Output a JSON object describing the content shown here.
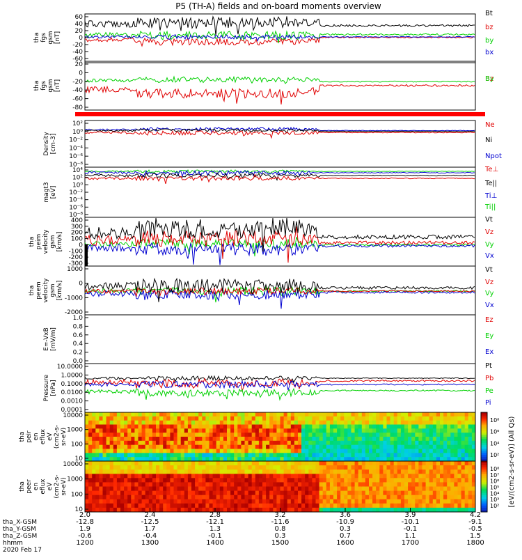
{
  "title": "P5 (TH-A) fields and on-board moments overview",
  "colors": {
    "black": "#000000",
    "red": "#e00000",
    "green": "#00d000",
    "blue": "#0000d0"
  },
  "chart_data": {
    "type": "line",
    "time_axis": {
      "hhmm": [
        "1200",
        "1300",
        "1400",
        "1500",
        "1600",
        "1700",
        "1800"
      ],
      "x_gsm": [
        "-12.8",
        "-12.5",
        "-12.1",
        "-11.6",
        "-10.9",
        "-10.1",
        "-9.1"
      ],
      "y_gsm": [
        "1.9",
        "1.7",
        "1.3",
        "0.8",
        "0.3",
        "-0.1",
        "-0.5"
      ],
      "z_gsm": [
        "-0.6",
        "-0.4",
        "-0.1",
        "0.3",
        "0.7",
        "1.1",
        "1.5"
      ],
      "r_re": [
        "2.0",
        "2.4",
        "2.8",
        "3.2",
        "3.6",
        "3.9",
        "4.2"
      ],
      "row_labels": [
        "tha_X-GSM",
        "tha_Y-GSM",
        "tha_Z-GSM",
        "hhmm"
      ],
      "date": "2020 Feb 17"
    },
    "panels": [
      {
        "id": "fgs",
        "ylabel": [
          "tha",
          "fgs",
          "gsm",
          "[nT]"
        ],
        "type": "line",
        "yticks": [
          "60",
          "40",
          "20",
          "0",
          "-20",
          "-40",
          "-60"
        ],
        "legend": [
          {
            "label": "Bt",
            "color": "black"
          },
          {
            "label": "bz",
            "color": "red"
          },
          {
            "label": "by",
            "color": "green"
          },
          {
            "label": "bx",
            "color": "blue"
          }
        ]
      },
      {
        "id": "fgs_dsl",
        "ylabel": [
          "tha",
          "fgs",
          "gsm",
          "[nT]"
        ],
        "type": "line",
        "yticks": [
          "20",
          "0",
          "-20",
          "-40",
          "-60",
          "-80"
        ],
        "legend": [
          {
            "label": "Bz",
            "color": "red"
          },
          {
            "label": "By",
            "color": "green"
          }
        ]
      },
      {
        "id": "density",
        "ylabel": [
          "Density",
          "[cm-3]"
        ],
        "type": "line",
        "scale": "log",
        "yticks": [
          "10²",
          "10⁰",
          "10⁻²",
          "10⁻⁴",
          "10⁻⁶",
          "10⁻⁸"
        ],
        "legend": [
          {
            "label": "Ne",
            "color": "red"
          },
          {
            "label": "Ni",
            "color": "black"
          },
          {
            "label": "Npot",
            "color": "blue"
          }
        ]
      },
      {
        "id": "temp",
        "ylabel": [
          "magt3",
          "[eV]"
        ],
        "type": "line",
        "scale": "log",
        "yticks": [
          "10⁴",
          "10²",
          "10⁰",
          "10⁻²",
          "10⁻⁴",
          "10⁻⁶",
          "10⁻⁸"
        ],
        "legend": [
          {
            "label": "Te⊥",
            "color": "red"
          },
          {
            "label": "Te||",
            "color": "black"
          },
          {
            "label": "Ti⊥",
            "color": "blue"
          },
          {
            "label": "Ti||",
            "color": "green"
          }
        ]
      },
      {
        "id": "vi",
        "ylabel": [
          "tha",
          "peim",
          "velocity",
          "gsm",
          "[km/s]"
        ],
        "type": "line",
        "yticks": [
          "400",
          "300",
          "200",
          "100",
          "0",
          "-100",
          "-200",
          "-300"
        ],
        "legend": [
          {
            "label": "Vt",
            "color": "black"
          },
          {
            "label": "Vz",
            "color": "red"
          },
          {
            "label": "Vy",
            "color": "green"
          },
          {
            "label": "Vx",
            "color": "blue"
          }
        ]
      },
      {
        "id": "ve",
        "ylabel": [
          "tha",
          "peem",
          "velocity",
          "gsm",
          "[km/s]"
        ],
        "type": "line",
        "yticks": [
          "1000",
          "0",
          "-1000",
          "-2000"
        ],
        "legend": [
          {
            "label": "Vt",
            "color": "black"
          },
          {
            "label": "Vz",
            "color": "red"
          },
          {
            "label": "Vy",
            "color": "green"
          },
          {
            "label": "Vx",
            "color": "blue"
          }
        ]
      },
      {
        "id": "efield",
        "ylabel": [
          "E=-VxB",
          "[mV/m]"
        ],
        "type": "line",
        "yticks": [
          "1.0",
          "0.8",
          "0.6",
          "0.4",
          "0.2",
          "0.0"
        ],
        "legend": [
          {
            "label": "Ez",
            "color": "red"
          },
          {
            "label": "Ey",
            "color": "green"
          },
          {
            "label": "Ex",
            "color": "blue"
          }
        ]
      },
      {
        "id": "pressure",
        "ylabel": [
          "Pressure",
          "[nPa]"
        ],
        "type": "line",
        "scale": "log",
        "yticks": [
          "10.0000",
          "1.0000",
          "0.1000",
          "0.0100",
          "0.0010",
          "0.0001"
        ],
        "legend": [
          {
            "label": "Pt",
            "color": "black"
          },
          {
            "label": "Pb",
            "color": "red"
          },
          {
            "label": "Pe",
            "color": "green"
          },
          {
            "label": "Pi",
            "color": "blue"
          }
        ]
      },
      {
        "id": "peir",
        "ylabel": [
          "tha",
          "peir",
          "en",
          "eflux",
          "eV",
          "(cm2-s-",
          "sr-eV)"
        ],
        "type": "heatmap",
        "yticks": [
          "10000",
          "1000",
          "100",
          "10"
        ],
        "colorbar": [
          "10⁸",
          "10⁶",
          "10⁴",
          "10²"
        ]
      },
      {
        "id": "peer",
        "ylabel": [
          "tha",
          "peer",
          "en",
          "eflux",
          "eV",
          "(cm2-s-",
          "sr-eV)"
        ],
        "type": "heatmap",
        "yticks": [
          "10000",
          "1000",
          "100",
          "10"
        ],
        "colorbar": [
          "10⁸",
          "10⁷",
          "10⁶",
          "10⁵",
          "10⁴",
          "10³",
          "10²"
        ]
      }
    ],
    "colorbar_label": "[eV/(cm2-s-sr-eV)] (All Qs)"
  }
}
